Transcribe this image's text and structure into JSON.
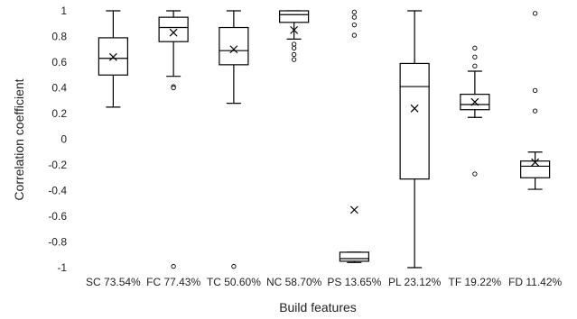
{
  "chart_data": {
    "type": "box",
    "title": "",
    "xlabel": "Build features",
    "ylabel": "Correlation coefficient",
    "ylim": [
      -1,
      1
    ],
    "yticks": [
      1,
      0.8,
      0.6,
      0.4,
      0.2,
      0,
      -0.2,
      -0.4,
      -0.6,
      -0.8,
      -1
    ],
    "ytick_labels": [
      "1",
      "0.8",
      "0.6",
      "0.4",
      "0.2",
      "0",
      "-0.2",
      "-0.4",
      "-0.6",
      "-0.8",
      "-1"
    ],
    "grid": false,
    "categories": [
      "SC 73.54%",
      "FC 77.43%",
      "TC 50.60%",
      "NC 58.70%",
      "PS 13.65%",
      "PL 23.12%",
      "TF 19.22%",
      "FD 11.42%"
    ],
    "boxes": [
      {
        "whisker_low": 0.25,
        "q1": 0.5,
        "median": 0.63,
        "q3": 0.79,
        "whisker_high": 1.0,
        "mean": 0.64,
        "outliers": []
      },
      {
        "whisker_low": 0.49,
        "q1": 0.76,
        "median": 0.87,
        "q3": 0.95,
        "whisker_high": 1.0,
        "mean": 0.83,
        "outliers": [
          0.41,
          0.4,
          -0.99
        ]
      },
      {
        "whisker_low": 0.28,
        "q1": 0.58,
        "median": 0.69,
        "q3": 0.87,
        "whisker_high": 1.0,
        "mean": 0.7,
        "outliers": [
          -0.99
        ]
      },
      {
        "whisker_low": 0.78,
        "q1": 0.91,
        "median": 0.97,
        "q3": 1.0,
        "whisker_high": 1.0,
        "mean": 0.85,
        "outliers": [
          0.74,
          0.71,
          0.66,
          0.62
        ]
      },
      {
        "whisker_low": -0.96,
        "q1": -0.95,
        "median": -0.93,
        "q3": -0.88,
        "whisker_high": -0.88,
        "mean": -0.55,
        "outliers": [
          0.99,
          0.95,
          0.89,
          0.81
        ]
      },
      {
        "whisker_low": -1.0,
        "q1": -0.31,
        "median": 0.41,
        "q3": 0.59,
        "whisker_high": 1.0,
        "mean": 0.24,
        "outliers": []
      },
      {
        "whisker_low": 0.17,
        "q1": 0.23,
        "median": 0.27,
        "q3": 0.35,
        "whisker_high": 0.53,
        "mean": 0.29,
        "outliers": [
          0.71,
          0.64,
          0.57,
          -0.27
        ]
      },
      {
        "whisker_low": -0.39,
        "q1": -0.3,
        "median": -0.21,
        "q3": -0.17,
        "whisker_high": -0.1,
        "mean": -0.18,
        "outliers": [
          0.98,
          0.38,
          0.22
        ]
      }
    ]
  }
}
